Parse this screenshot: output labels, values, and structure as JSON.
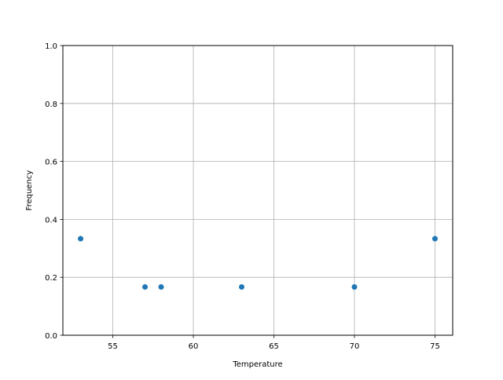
{
  "chart_data": {
    "type": "scatter",
    "title": "",
    "xlabel": "Temperature",
    "ylabel": "Frequency",
    "x": [
      53,
      57,
      58,
      63,
      70,
      75
    ],
    "y": [
      0.3333,
      0.1667,
      0.1667,
      0.1667,
      0.1667,
      0.3333
    ],
    "xlim": [
      51.9,
      76.1
    ],
    "ylim": [
      0.0,
      1.0
    ],
    "xticks": [
      "55",
      "60",
      "65",
      "70",
      "75"
    ],
    "yticks": [
      "0.0",
      "0.2",
      "0.4",
      "0.6",
      "0.8",
      "1.0"
    ],
    "grid": true,
    "color": "#1f77b4"
  }
}
